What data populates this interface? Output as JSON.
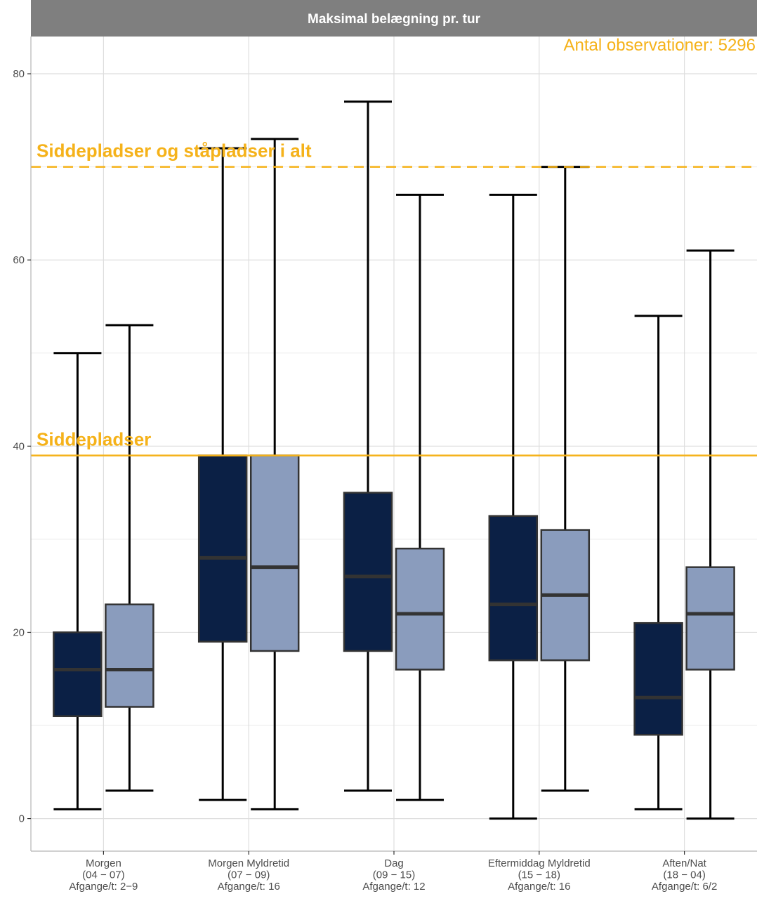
{
  "chart_data": {
    "type": "boxplot",
    "title": "Maksimal belægning pr. tur",
    "annotation": "Antal observationer: 5296",
    "ylim": [
      -3.5,
      84
    ],
    "y_ticks": [
      0,
      20,
      40,
      60,
      80
    ],
    "grid": true,
    "categories": [
      {
        "lines": [
          "Morgen",
          "(04 − 07)",
          "Afgange/t: 2−9"
        ]
      },
      {
        "lines": [
          "Morgen Myldretid",
          "(07 − 09)",
          "Afgange/t: 16"
        ]
      },
      {
        "lines": [
          "Dag",
          "(09 − 15)",
          "Afgange/t: 12"
        ]
      },
      {
        "lines": [
          "Eftermiddag Myldretid",
          "(15 − 18)",
          "Afgange/t: 16"
        ]
      },
      {
        "lines": [
          "Aften/Nat",
          "(18 − 04)",
          "Afgange/t: 6/2"
        ]
      }
    ],
    "series": [
      {
        "color": "#0b2045",
        "boxes": [
          {
            "min": 1,
            "q1": 11,
            "median": 16,
            "q3": 20,
            "max": 50
          },
          {
            "min": 2,
            "q1": 19,
            "median": 28,
            "q3": 39,
            "max": 72
          },
          {
            "min": 3,
            "q1": 18,
            "median": 26,
            "q3": 35,
            "max": 77
          },
          {
            "min": 0,
            "q1": 17,
            "median": 23,
            "q3": 32.5,
            "max": 67
          },
          {
            "min": 1,
            "q1": 9,
            "median": 13,
            "q3": 21,
            "max": 54
          }
        ]
      },
      {
        "color": "#8a9cbd",
        "boxes": [
          {
            "min": 3,
            "q1": 12,
            "median": 16,
            "q3": 23,
            "max": 53
          },
          {
            "min": 1,
            "q1": 18,
            "median": 27,
            "q3": 39,
            "max": 73
          },
          {
            "min": 2,
            "q1": 16,
            "median": 22,
            "q3": 29,
            "max": 67
          },
          {
            "min": 3,
            "q1": 17,
            "median": 24,
            "q3": 31,
            "max": 70
          },
          {
            "min": 0,
            "q1": 16,
            "median": 22,
            "q3": 27,
            "max": 61
          }
        ]
      }
    ],
    "reference_lines": [
      {
        "label": "Siddepladser og ståpladser i alt",
        "y": 70,
        "style": "dashed",
        "color": "#f5b21a"
      },
      {
        "label": "Siddepladser",
        "y": 39,
        "style": "solid",
        "color": "#f5b21a"
      }
    ]
  }
}
